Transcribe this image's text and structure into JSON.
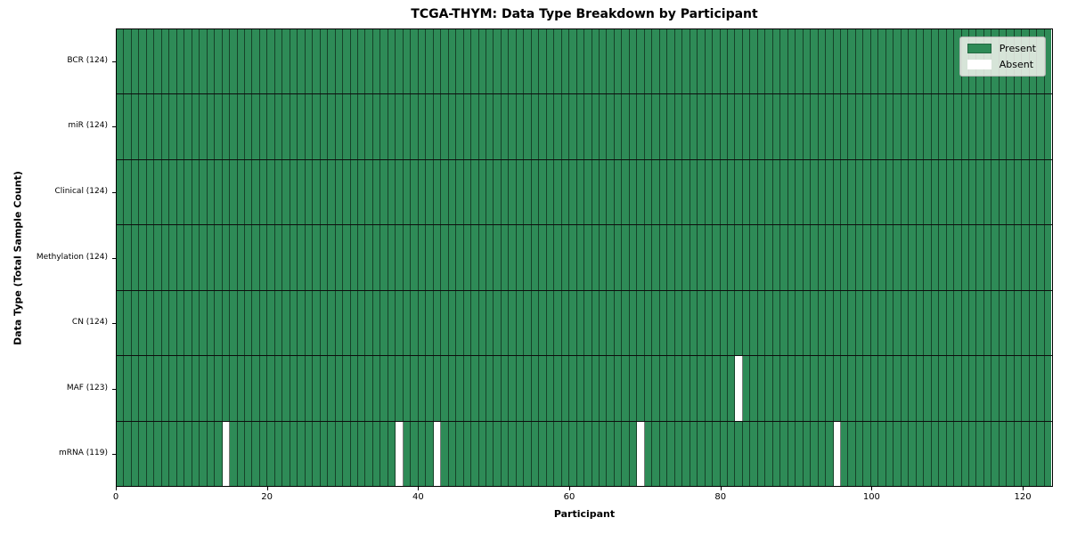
{
  "figure": {
    "title": "TCGA-THYM: Data Type Breakdown by Participant",
    "xlabel": "Participant",
    "ylabel": "Data Type (Total Sample Count)"
  },
  "legend": {
    "items": [
      {
        "label": "Present",
        "color": "#2e8b57"
      },
      {
        "label": "Absent",
        "color": "#ffffff"
      }
    ]
  },
  "chart_data": {
    "type": "heatmap",
    "title": "TCGA-THYM: Data Type Breakdown by Participant",
    "xlabel": "Participant",
    "ylabel": "Data Type (Total Sample Count)",
    "x_ticks": [
      0,
      20,
      40,
      60,
      80,
      100,
      120
    ],
    "xlim": [
      0,
      124
    ],
    "n_participants": 124,
    "legend_position": "upper right",
    "grid": "cell-borders",
    "rows": [
      {
        "label": "BCR (124)",
        "data_type": "BCR",
        "present_count": 124,
        "absent_participants": []
      },
      {
        "label": "miR (124)",
        "data_type": "miR",
        "present_count": 124,
        "absent_participants": []
      },
      {
        "label": "Clinical (124)",
        "data_type": "Clinical",
        "present_count": 124,
        "absent_participants": []
      },
      {
        "label": "Methylation (124)",
        "data_type": "Methylation",
        "present_count": 124,
        "absent_participants": []
      },
      {
        "label": "CN (124)",
        "data_type": "CN",
        "present_count": 124,
        "absent_participants": []
      },
      {
        "label": "MAF (123)",
        "data_type": "MAF",
        "present_count": 123,
        "absent_participants": [
          82
        ]
      },
      {
        "label": "mRNA (119)",
        "data_type": "mRNA",
        "present_count": 119,
        "absent_participants": [
          14,
          37,
          42,
          69,
          95
        ]
      }
    ],
    "colors": {
      "present": "#2e8b57",
      "absent": "#ffffff",
      "cell_edge": "rgba(0,0,0,0.52)",
      "row_divider": "#0d0d0d",
      "plot_border": "#000000"
    }
  }
}
